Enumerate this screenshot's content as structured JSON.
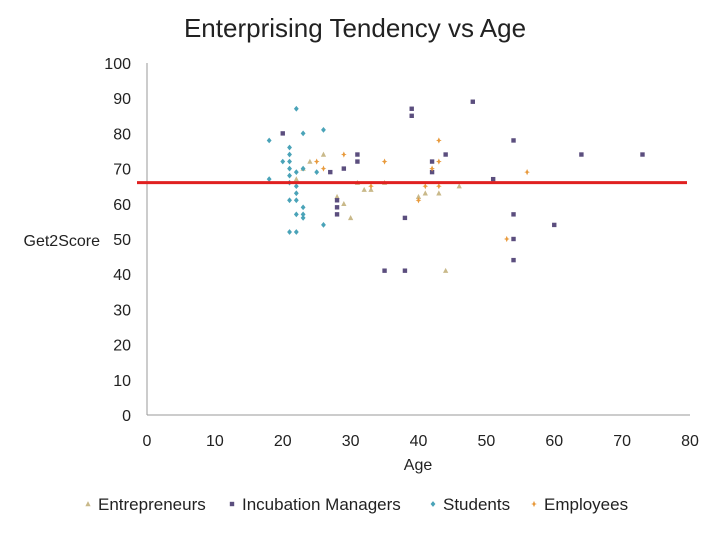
{
  "chart_data": {
    "type": "scatter",
    "title": "Enterprising Tendency vs Age",
    "xlabel": "Age",
    "ylabel": "Get2Score",
    "xlim": [
      0,
      80
    ],
    "ylim": [
      0,
      100
    ],
    "xticks": [
      0,
      10,
      20,
      30,
      40,
      50,
      60,
      70,
      80
    ],
    "yticks": [
      0,
      10,
      20,
      30,
      40,
      50,
      60,
      70,
      80,
      90,
      100
    ],
    "grid": false,
    "legend_position": "bottom",
    "threshold_line": {
      "y": 66,
      "color": "#e02020"
    },
    "series": [
      {
        "name": "Entrepreneurs",
        "color": "#c9b98a",
        "marker": "triangle",
        "points": [
          [
            22,
            67
          ],
          [
            23,
            70
          ],
          [
            24,
            72
          ],
          [
            26,
            74
          ],
          [
            28,
            62
          ],
          [
            29,
            60
          ],
          [
            30,
            56
          ],
          [
            31,
            66
          ],
          [
            32,
            64
          ],
          [
            33,
            64
          ],
          [
            35,
            66
          ],
          [
            40,
            62
          ],
          [
            41,
            63
          ],
          [
            43,
            63
          ],
          [
            44,
            41
          ],
          [
            46,
            65
          ]
        ]
      },
      {
        "name": "Incubation Managers",
        "color": "#5b4e7e",
        "marker": "square",
        "points": [
          [
            20,
            80
          ],
          [
            27,
            69
          ],
          [
            28,
            61
          ],
          [
            28,
            59
          ],
          [
            28,
            57
          ],
          [
            29,
            70
          ],
          [
            31,
            74
          ],
          [
            31,
            72
          ],
          [
            35,
            41
          ],
          [
            38,
            41
          ],
          [
            38,
            56
          ],
          [
            39,
            87
          ],
          [
            39,
            85
          ],
          [
            42,
            72
          ],
          [
            42,
            69
          ],
          [
            44,
            74
          ],
          [
            48,
            89
          ],
          [
            51,
            67
          ],
          [
            54,
            78
          ],
          [
            54,
            57
          ],
          [
            54,
            50
          ],
          [
            54,
            44
          ],
          [
            60,
            54
          ],
          [
            64,
            74
          ],
          [
            73,
            74
          ]
        ]
      },
      {
        "name": "Students",
        "color": "#4aa3b8",
        "marker": "diamond",
        "points": [
          [
            18,
            78
          ],
          [
            18,
            67
          ],
          [
            20,
            72
          ],
          [
            21,
            76
          ],
          [
            21,
            74
          ],
          [
            21,
            72
          ],
          [
            21,
            70
          ],
          [
            21,
            68
          ],
          [
            21,
            66
          ],
          [
            21,
            61
          ],
          [
            21,
            52
          ],
          [
            22,
            87
          ],
          [
            22,
            69
          ],
          [
            22,
            65
          ],
          [
            22,
            63
          ],
          [
            22,
            61
          ],
          [
            22,
            57
          ],
          [
            22,
            52
          ],
          [
            23,
            80
          ],
          [
            23,
            70
          ],
          [
            23,
            59
          ],
          [
            23,
            57
          ],
          [
            23,
            56
          ],
          [
            25,
            69
          ],
          [
            26,
            54
          ],
          [
            26,
            81
          ]
        ]
      },
      {
        "name": "Employees",
        "color": "#e89a3c",
        "marker": "star",
        "points": [
          [
            25,
            72
          ],
          [
            26,
            70
          ],
          [
            29,
            74
          ],
          [
            33,
            65
          ],
          [
            35,
            72
          ],
          [
            40,
            61
          ],
          [
            41,
            65
          ],
          [
            42,
            70
          ],
          [
            43,
            78
          ],
          [
            43,
            72
          ],
          [
            43,
            65
          ],
          [
            53,
            50
          ],
          [
            56,
            69
          ]
        ]
      }
    ]
  }
}
